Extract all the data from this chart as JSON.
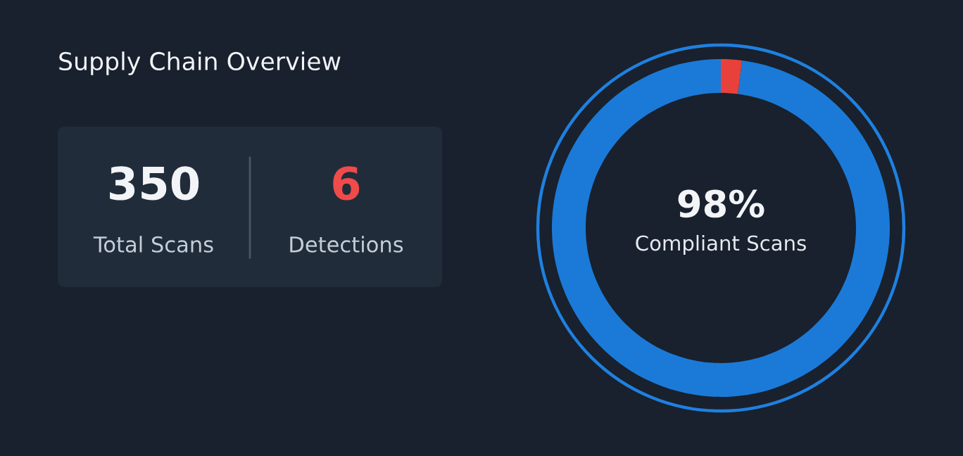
{
  "chart_data": [
    {
      "type": "other",
      "title": "Supply Chain Overview",
      "annotations": [
        "350",
        "Total Scans",
        "6",
        "Detections"
      ]
    },
    {
      "type": "donut",
      "categories": [
        "Compliant Scans",
        null
      ],
      "values": [
        98,
        2
      ],
      "colors": [
        "#1b7ad8",
        "#e8413c"
      ],
      "value_labels": [
        "98%",
        null
      ]
    }
  ]
}
